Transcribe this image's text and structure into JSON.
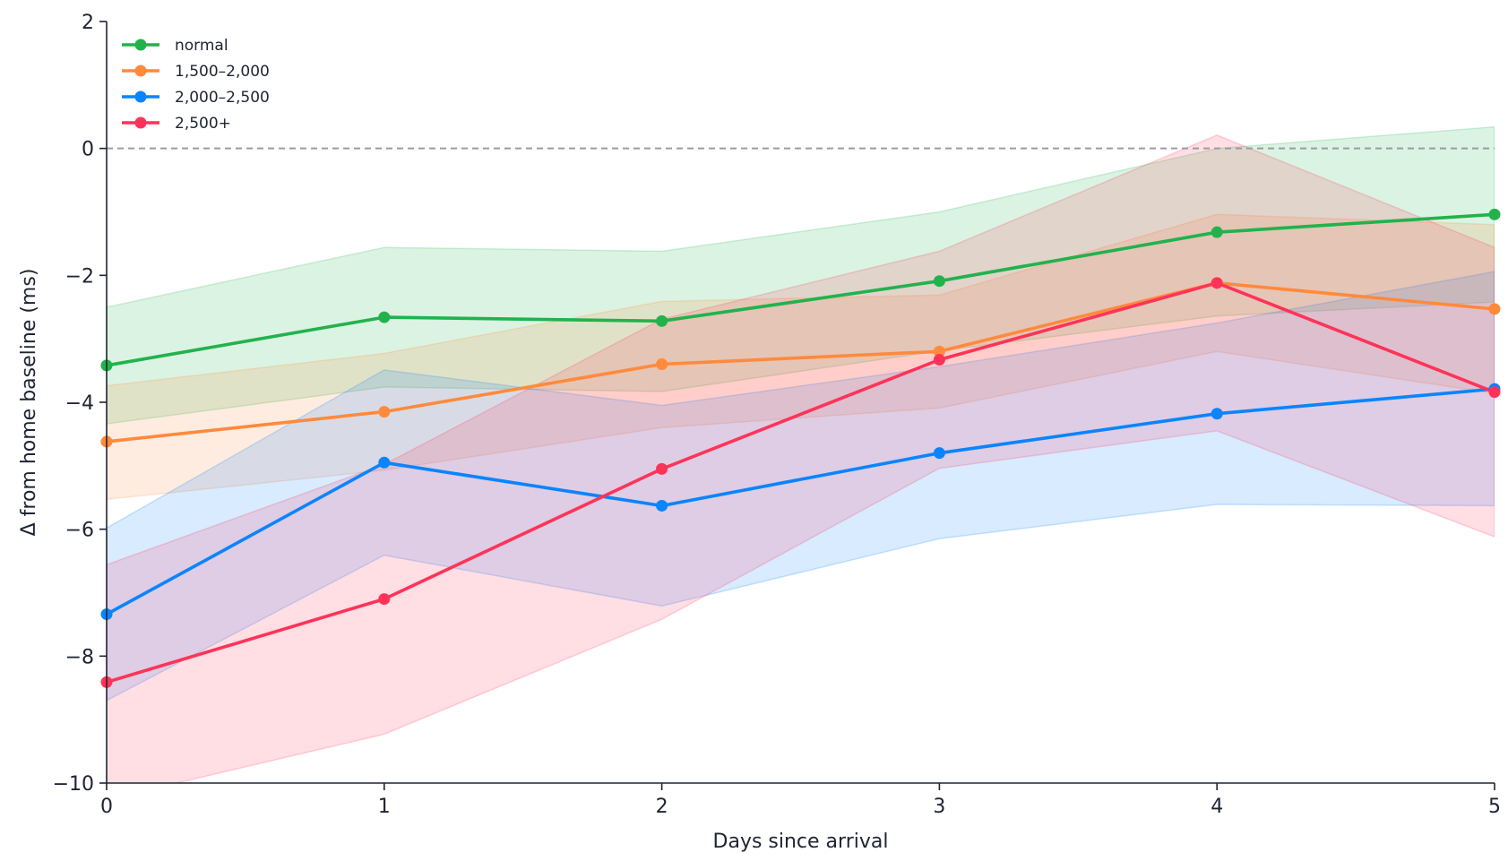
{
  "chart_data": {
    "type": "line",
    "title": "",
    "xlabel": "Days since arrival",
    "ylabel": "Δ from home baseline (ms)",
    "x": [
      0,
      1,
      2,
      3,
      4,
      5
    ],
    "xlim": [
      0,
      5
    ],
    "ylim": [
      -10,
      2
    ],
    "xticks": [
      0,
      1,
      2,
      3,
      4,
      5
    ],
    "yticks": [
      -10,
      -8,
      -6,
      -4,
      -2,
      0,
      2
    ],
    "xtick_labels": [
      "0",
      "1",
      "2",
      "3",
      "4",
      "5"
    ],
    "ytick_labels": [
      "−10",
      "−8",
      "−6",
      "−4",
      "−2",
      "0",
      "2"
    ],
    "reference_line": 0,
    "grid": false,
    "legend_position": "top-left",
    "series": [
      {
        "name": "normal",
        "color": "#22b24c",
        "values": [
          -3.42,
          -2.66,
          -2.72,
          -2.09,
          -1.32,
          -1.04
        ],
        "band_upper": [
          -2.5,
          -1.56,
          -1.62,
          -1.0,
          0.0,
          0.34
        ],
        "band_lower": [
          -4.34,
          -3.76,
          -3.83,
          -3.19,
          -2.64,
          -2.42
        ]
      },
      {
        "name": "1,500–2,000",
        "color": "#ff8a3c",
        "values": [
          -4.62,
          -4.15,
          -3.4,
          -3.2,
          -2.12,
          -2.53
        ],
        "band_upper": [
          -3.74,
          -3.23,
          -2.41,
          -2.31,
          -1.04,
          -1.2
        ],
        "band_lower": [
          -5.53,
          -5.07,
          -4.4,
          -4.09,
          -3.2,
          -3.86
        ]
      },
      {
        "name": "2,000–2,500",
        "color": "#0a84ff",
        "values": [
          -7.34,
          -4.95,
          -5.63,
          -4.8,
          -4.18,
          -3.79
        ],
        "band_upper": [
          -5.98,
          -3.49,
          -4.05,
          -3.44,
          -2.75,
          -1.94
        ],
        "band_lower": [
          -8.7,
          -6.41,
          -7.21,
          -6.15,
          -5.61,
          -5.63
        ]
      },
      {
        "name": "2,500+",
        "color": "#ff3358",
        "values": [
          -8.41,
          -7.1,
          -5.05,
          -3.33,
          -2.12,
          -3.84
        ],
        "band_upper": [
          -6.56,
          -4.98,
          -2.69,
          -1.62,
          0.21,
          -1.56
        ],
        "band_lower": [
          -10.26,
          -9.23,
          -7.42,
          -5.04,
          -4.45,
          -6.12
        ]
      }
    ]
  }
}
